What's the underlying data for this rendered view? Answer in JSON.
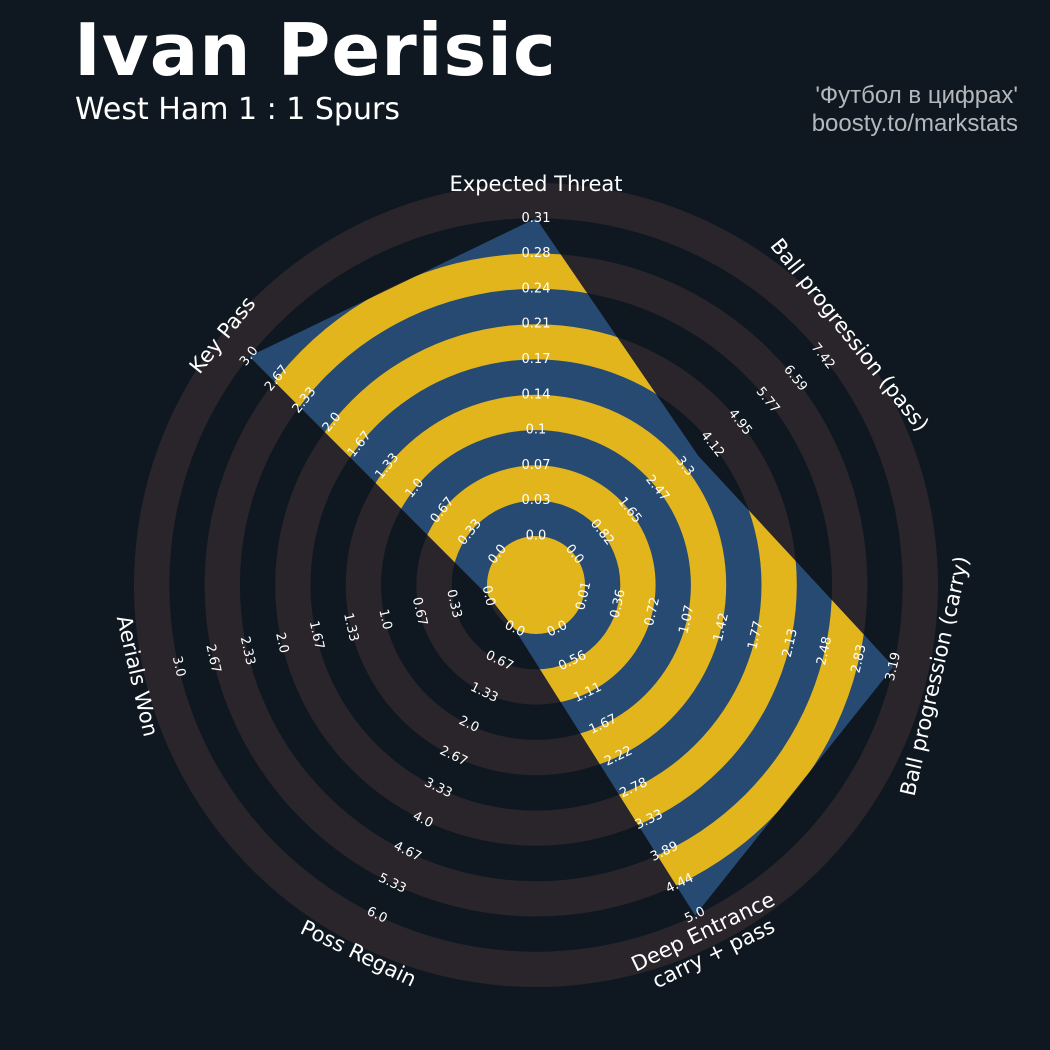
{
  "header": {
    "player": "Ivan Perisic",
    "match": "West Ham 1 : 1 Spurs",
    "credit_line1": "'Футбол в цифрах'",
    "credit_line2": "boosty.to/markstats"
  },
  "colors": {
    "background": "#0f1820",
    "ring_dark": "#29252b",
    "player_fill": "#274a73",
    "ring_highlight": "#e2b51d",
    "text": "#ffffff",
    "credit_text": "#b4b8bc"
  },
  "chart_data": {
    "type": "radar",
    "title": "Ivan Perisic",
    "subtitle": "West Ham 1 : 1 Spurs",
    "ring_count": 10,
    "grid": "alternating concentric rings",
    "params": [
      {
        "label": "Expected Threat",
        "min": 0.0,
        "max": 0.31,
        "value": 0.31,
        "ticks": [
          "0.0",
          "0.03",
          "0.07",
          "0.1",
          "0.14",
          "0.17",
          "0.21",
          "0.24",
          "0.28",
          "0.31"
        ]
      },
      {
        "label": "Ball progression (pass)",
        "min": 0.0,
        "max": 7.42,
        "value": 3.7,
        "ticks": [
          "0.0",
          "0.82",
          "1.65",
          "2.47",
          "3.3",
          "4.12",
          "4.95",
          "5.77",
          "6.59",
          "7.42"
        ]
      },
      {
        "label": "Ball progression (carry)",
        "min": 0.01,
        "max": 3.19,
        "value": 3.19,
        "ticks": [
          "0.01",
          "0.36",
          "0.72",
          "1.07",
          "1.42",
          "1.77",
          "2.13",
          "2.48",
          "2.83",
          "3.19"
        ]
      },
      {
        "label": "Deep Entrance\ncarry + pass",
        "min": 0.0,
        "max": 5.0,
        "value": 5.0,
        "ticks": [
          "0.0",
          "0.56",
          "1.11",
          "1.67",
          "2.22",
          "2.78",
          "3.33",
          "3.89",
          "4.44",
          "5.0"
        ]
      },
      {
        "label": "Poss Regain",
        "min": 0.0,
        "max": 6.0,
        "value": 0.0,
        "ticks": [
          "0.0",
          "0.67",
          "1.33",
          "2.0",
          "2.67",
          "3.33",
          "4.0",
          "4.67",
          "5.33",
          "6.0"
        ]
      },
      {
        "label": "Aerials Won",
        "min": 0.0,
        "max": 3.0,
        "value": 0.0,
        "ticks": [
          "0.0",
          "0.33",
          "0.67",
          "1.0",
          "1.33",
          "1.67",
          "2.0",
          "2.33",
          "2.67",
          "3.0"
        ]
      },
      {
        "label": "Key Pass",
        "min": 0.0,
        "max": 3.0,
        "value": 3.0,
        "ticks": [
          "0.0",
          "0.33",
          "0.67",
          "1.0",
          "1.33",
          "1.67",
          "2.0",
          "2.33",
          "2.67",
          "3.0"
        ]
      }
    ]
  }
}
